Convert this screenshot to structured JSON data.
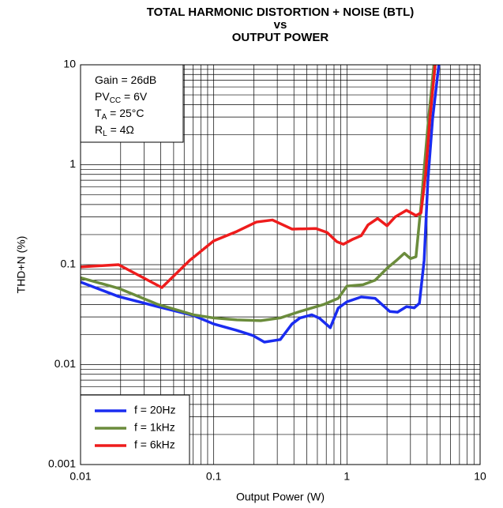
{
  "chart_data": {
    "type": "line",
    "title": [
      "TOTAL HARMONIC DISTORTION + NOISE (BTL)",
      "vs",
      "OUTPUT POWER"
    ],
    "xlabel": "Output Power (W)",
    "ylabel": "THD+N (%)",
    "xscale": "log",
    "yscale": "log",
    "xlim": [
      0.01,
      10
    ],
    "ylim": [
      0.001,
      10
    ],
    "xticks": [
      0.01,
      0.1,
      1,
      10
    ],
    "yticks": [
      0.001,
      0.01,
      0.1,
      1,
      10
    ],
    "grid": true,
    "minor_grid": true,
    "legend": "lower left",
    "annotations": [
      {
        "main": "Gain = 26dB"
      },
      {
        "main": "PV",
        "sub": "CC",
        "after": " = 6V"
      },
      {
        "main": "T",
        "sub": "A",
        "after": " = 25°C"
      },
      {
        "main": "R",
        "sub": "L",
        "after": " = 4Ω"
      }
    ],
    "series": [
      {
        "name": "f = 20Hz",
        "color": "#1a2cf0",
        "x": [
          0.01,
          0.0193,
          0.0381,
          0.0704,
          0.1,
          0.149,
          0.196,
          0.24,
          0.316,
          0.387,
          0.444,
          0.545,
          0.625,
          0.75,
          0.86,
          1.0,
          1.28,
          1.63,
          2.1,
          2.4,
          2.8,
          3.2,
          3.5,
          3.8,
          4.05,
          4.4,
          4.9
        ],
        "values": [
          0.067,
          0.048,
          0.038,
          0.031,
          0.0255,
          0.022,
          0.0196,
          0.0168,
          0.0178,
          0.0255,
          0.0293,
          0.0315,
          0.029,
          0.0234,
          0.0367,
          0.0425,
          0.0475,
          0.046,
          0.034,
          0.0335,
          0.038,
          0.037,
          0.041,
          0.11,
          0.68,
          2.9,
          10
        ]
      },
      {
        "name": "f = 1kHz",
        "color": "#6b8c3c",
        "x": [
          0.01,
          0.0193,
          0.0381,
          0.0704,
          0.1,
          0.149,
          0.225,
          0.316,
          0.444,
          0.67,
          0.86,
          1.0,
          1.32,
          1.63,
          2.0,
          2.35,
          2.7,
          3.0,
          3.3,
          3.6,
          4.05,
          4.5
        ],
        "values": [
          0.074,
          0.058,
          0.04,
          0.0315,
          0.0293,
          0.028,
          0.0275,
          0.0293,
          0.034,
          0.04,
          0.046,
          0.061,
          0.063,
          0.07,
          0.092,
          0.11,
          0.13,
          0.115,
          0.12,
          0.39,
          2.4,
          10
        ]
      },
      {
        "name": "f = 6kHz",
        "color": "#ee1c1c",
        "x": [
          0.01,
          0.0193,
          0.0408,
          0.0658,
          0.1,
          0.149,
          0.209,
          0.276,
          0.387,
          0.585,
          0.71,
          0.84,
          0.94,
          1.11,
          1.28,
          1.44,
          1.7,
          2.0,
          2.3,
          2.8,
          3.3,
          3.6,
          3.9,
          4.2,
          4.6
        ],
        "values": [
          0.095,
          0.1,
          0.059,
          0.11,
          0.173,
          0.215,
          0.267,
          0.28,
          0.227,
          0.23,
          0.21,
          0.17,
          0.16,
          0.18,
          0.195,
          0.25,
          0.29,
          0.245,
          0.3,
          0.35,
          0.31,
          0.33,
          0.81,
          2.9,
          10
        ]
      }
    ]
  }
}
